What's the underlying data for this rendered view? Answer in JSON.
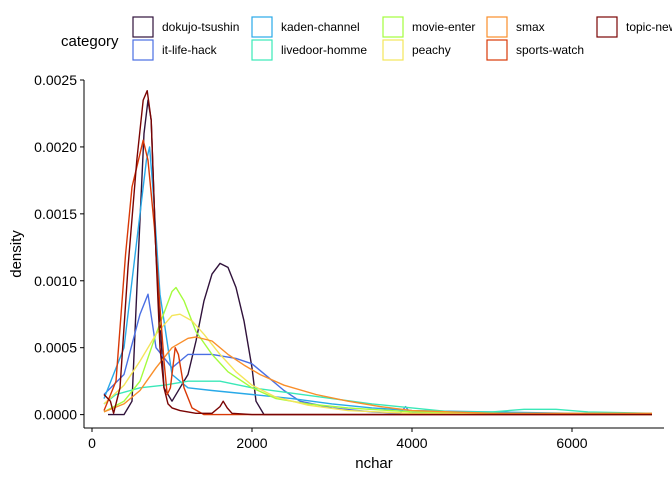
{
  "chart_data": {
    "type": "line",
    "xlabel": "nchar",
    "ylabel": "density",
    "xlim": [
      -100,
      7150
    ],
    "ylim": [
      -0.0001,
      0.0025
    ],
    "x_ticks": [
      0,
      2000,
      4000,
      6000
    ],
    "x_tick_labels": [
      "0",
      "2000",
      "4000",
      "6000"
    ],
    "y_ticks": [
      0,
      0.0005,
      0.001,
      0.0015,
      0.002,
      0.0025
    ],
    "y_tick_labels": [
      "0.0000",
      "0.0005",
      "0.0010",
      "0.0015",
      "0.0020",
      "0.0025"
    ],
    "grid": false,
    "legend": {
      "title": "category",
      "placement": "top",
      "columns": [
        [
          "dokujo-tsushin",
          "it-life-hack"
        ],
        [
          "kaden-channel",
          "livedoor-homme"
        ],
        [
          "movie-enter",
          "peachy"
        ],
        [
          "smax",
          "sports-watch"
        ],
        [
          "topic-news"
        ]
      ]
    },
    "series": [
      {
        "name": "dokujo-tsushin",
        "color": "#30123b",
        "points": [
          [
            200,
            0
          ],
          [
            400,
            0
          ],
          [
            500,
            0.0001
          ],
          [
            580,
            0.0012
          ],
          [
            650,
            0.0021
          ],
          [
            700,
            0.00235
          ],
          [
            740,
            0.0022
          ],
          [
            800,
            0.0012
          ],
          [
            900,
            0.0002
          ],
          [
            1000,
            0.0001
          ],
          [
            1100,
            0.0002
          ],
          [
            1200,
            0.0003
          ],
          [
            1300,
            0.00055
          ],
          [
            1400,
            0.00085
          ],
          [
            1500,
            0.00105
          ],
          [
            1600,
            0.00113
          ],
          [
            1700,
            0.0011
          ],
          [
            1800,
            0.00095
          ],
          [
            1900,
            0.0007
          ],
          [
            2000,
            0.00035
          ],
          [
            2050,
            0.0001
          ],
          [
            2150,
            0
          ],
          [
            7000,
            0
          ]
        ]
      },
      {
        "name": "it-life-hack",
        "color": "#4a6fe3",
        "points": [
          [
            150,
            0.00015
          ],
          [
            400,
            0.0003
          ],
          [
            600,
            0.00075
          ],
          [
            700,
            0.0009
          ],
          [
            800,
            0.0005
          ],
          [
            1000,
            0.00035
          ],
          [
            1200,
            0.00045
          ],
          [
            1500,
            0.00045
          ],
          [
            1800,
            0.00042
          ],
          [
            2000,
            0.00038
          ],
          [
            2200,
            0.00028
          ],
          [
            2400,
            0.00018
          ],
          [
            2600,
            0.0001
          ],
          [
            3000,
            5e-05
          ],
          [
            3500,
            2e-05
          ],
          [
            3850,
            1e-05
          ],
          [
            3920,
            6e-05
          ],
          [
            3980,
            1e-05
          ],
          [
            5000,
            1e-05
          ],
          [
            7000,
            0
          ]
        ]
      },
      {
        "name": "kaden-channel",
        "color": "#28a9e8",
        "points": [
          [
            150,
            0.00012
          ],
          [
            400,
            0.0005
          ],
          [
            600,
            0.0015
          ],
          [
            680,
            0.0019
          ],
          [
            720,
            0.002
          ],
          [
            760,
            0.0017
          ],
          [
            850,
            0.0009
          ],
          [
            1000,
            0.0003
          ],
          [
            1200,
            0.0002
          ],
          [
            1500,
            0.00018
          ],
          [
            2000,
            0.00015
          ],
          [
            2500,
            0.00012
          ],
          [
            3000,
            8e-05
          ],
          [
            3500,
            5e-05
          ],
          [
            4000,
            3e-05
          ],
          [
            5000,
            2e-05
          ],
          [
            6000,
            1e-05
          ],
          [
            7000,
            0
          ]
        ]
      },
      {
        "name": "livedoor-homme",
        "color": "#3ae8b8",
        "points": [
          [
            150,
            8e-05
          ],
          [
            300,
            0.00015
          ],
          [
            600,
            0.0002
          ],
          [
            900,
            0.00022
          ],
          [
            1200,
            0.00025
          ],
          [
            1600,
            0.00025
          ],
          [
            2000,
            0.0002
          ],
          [
            2500,
            0.00016
          ],
          [
            3000,
            0.00012
          ],
          [
            3500,
            8e-05
          ],
          [
            4000,
            5e-05
          ],
          [
            4500,
            2e-05
          ],
          [
            5000,
            2e-05
          ],
          [
            5400,
            4e-05
          ],
          [
            5800,
            4e-05
          ],
          [
            6200,
            2e-05
          ],
          [
            7000,
            1e-05
          ]
        ]
      },
      {
        "name": "movie-enter",
        "color": "#a4fc3c",
        "points": [
          [
            150,
            2e-05
          ],
          [
            400,
            0.0001
          ],
          [
            600,
            0.00025
          ],
          [
            800,
            0.0006
          ],
          [
            1000,
            0.00092
          ],
          [
            1050,
            0.00095
          ],
          [
            1150,
            0.00085
          ],
          [
            1300,
            0.00062
          ],
          [
            1500,
            0.00045
          ],
          [
            1700,
            0.00032
          ],
          [
            2000,
            0.0002
          ],
          [
            2300,
            0.00012
          ],
          [
            2700,
            8e-05
          ],
          [
            3200,
            5e-05
          ],
          [
            4000,
            2e-05
          ],
          [
            5000,
            1e-05
          ],
          [
            7000,
            0
          ]
        ]
      },
      {
        "name": "peachy",
        "color": "#f4e55a",
        "points": [
          [
            150,
            8e-05
          ],
          [
            400,
            0.00022
          ],
          [
            600,
            0.0004
          ],
          [
            800,
            0.0006
          ],
          [
            1000,
            0.00074
          ],
          [
            1100,
            0.00075
          ],
          [
            1250,
            0.0007
          ],
          [
            1400,
            0.0006
          ],
          [
            1600,
            0.00045
          ],
          [
            1800,
            0.00032
          ],
          [
            2000,
            0.00022
          ],
          [
            2300,
            0.00013
          ],
          [
            2700,
            7e-05
          ],
          [
            3200,
            3e-05
          ],
          [
            4000,
            1e-05
          ],
          [
            7000,
            0
          ]
        ]
      },
      {
        "name": "smax",
        "color": "#f98e2a",
        "points": [
          [
            150,
            2e-05
          ],
          [
            400,
            8e-05
          ],
          [
            600,
            0.00018
          ],
          [
            800,
            0.00035
          ],
          [
            1000,
            0.0005
          ],
          [
            1200,
            0.00057
          ],
          [
            1300,
            0.00058
          ],
          [
            1500,
            0.00055
          ],
          [
            1700,
            0.00045
          ],
          [
            1900,
            0.00037
          ],
          [
            2100,
            0.0003
          ],
          [
            2400,
            0.00022
          ],
          [
            2800,
            0.00015
          ],
          [
            3200,
            0.0001
          ],
          [
            3600,
            6e-05
          ],
          [
            4000,
            3e-05
          ],
          [
            4500,
            2e-05
          ],
          [
            5000,
            1e-05
          ],
          [
            6000,
            1e-05
          ],
          [
            7000,
            1e-05
          ]
        ]
      },
      {
        "name": "sports-watch",
        "color": "#d93806",
        "points": [
          [
            150,
            3e-05
          ],
          [
            300,
            0.00025
          ],
          [
            420,
            0.0012
          ],
          [
            500,
            0.0017
          ],
          [
            580,
            0.0019
          ],
          [
            640,
            0.00205
          ],
          [
            700,
            0.0019
          ],
          [
            780,
            0.0014
          ],
          [
            850,
            0.0008
          ],
          [
            900,
            0.0004
          ],
          [
            940,
            0.00015
          ],
          [
            980,
            0.0002
          ],
          [
            1040,
            0.0005
          ],
          [
            1080,
            0.00045
          ],
          [
            1150,
            0.0002
          ],
          [
            1250,
            5e-05
          ],
          [
            1400,
            0
          ],
          [
            7000,
            0
          ]
        ]
      },
      {
        "name": "topic-news",
        "color": "#7a0403",
        "points": [
          [
            150,
            0.00015
          ],
          [
            230,
            0.0001
          ],
          [
            270,
            1e-05
          ],
          [
            350,
            0.0002
          ],
          [
            450,
            0.0011
          ],
          [
            560,
            0.0019
          ],
          [
            640,
            0.00235
          ],
          [
            690,
            0.00242
          ],
          [
            740,
            0.0022
          ],
          [
            800,
            0.0012
          ],
          [
            850,
            0.0005
          ],
          [
            900,
            0.0002
          ],
          [
            950,
            8e-05
          ],
          [
            1000,
            5e-05
          ],
          [
            1100,
            3e-05
          ],
          [
            1300,
            1e-05
          ],
          [
            1500,
            1e-05
          ],
          [
            1600,
            6e-05
          ],
          [
            1640,
            0.0001
          ],
          [
            1690,
            5e-05
          ],
          [
            1750,
            1e-05
          ],
          [
            2000,
            0
          ],
          [
            7000,
            0
          ]
        ]
      }
    ]
  }
}
